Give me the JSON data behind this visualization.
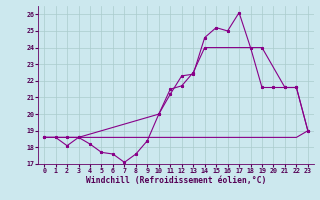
{
  "background_color": "#cce8ee",
  "grid_color": "#aacccc",
  "line_color": "#880088",
  "xlim": [
    -0.5,
    23.5
  ],
  "ylim": [
    17,
    26.5
  ],
  "xlabel": "Windchill (Refroidissement éolien,°C)",
  "xlabel_fontsize": 5.8,
  "ytick_vals": [
    17,
    18,
    19,
    20,
    21,
    22,
    23,
    24,
    25,
    26
  ],
  "xtick_vals": [
    0,
    1,
    2,
    3,
    4,
    5,
    6,
    7,
    8,
    9,
    10,
    11,
    12,
    13,
    14,
    15,
    16,
    17,
    18,
    19,
    20,
    21,
    22,
    23
  ],
  "series_main_x": [
    0,
    1,
    2,
    3,
    4,
    5,
    6,
    7,
    8,
    9,
    10,
    11,
    12,
    13,
    14,
    15,
    16,
    17,
    18,
    19,
    20,
    21,
    22,
    23
  ],
  "series_main_y": [
    18.6,
    18.6,
    18.1,
    18.6,
    18.2,
    17.7,
    17.6,
    17.1,
    17.6,
    18.4,
    20.0,
    21.2,
    22.3,
    22.4,
    24.6,
    25.2,
    25.0,
    26.1,
    24.0,
    21.6,
    21.6,
    21.6,
    21.6,
    19.0
  ],
  "series_smooth_x": [
    0,
    2,
    3,
    10,
    11,
    12,
    13,
    14,
    19,
    21,
    22,
    23
  ],
  "series_smooth_y": [
    18.6,
    18.6,
    18.6,
    20.0,
    21.5,
    21.7,
    22.5,
    24.0,
    24.0,
    21.6,
    21.6,
    19.0
  ],
  "series_flat_x": [
    0,
    9,
    10,
    11,
    12,
    13,
    14,
    15,
    16,
    17,
    18,
    19,
    20,
    21,
    22,
    23
  ],
  "series_flat_y": [
    18.6,
    18.6,
    18.6,
    18.6,
    18.6,
    18.6,
    18.6,
    18.6,
    18.6,
    18.6,
    18.6,
    18.6,
    18.6,
    18.6,
    18.6,
    19.0
  ]
}
